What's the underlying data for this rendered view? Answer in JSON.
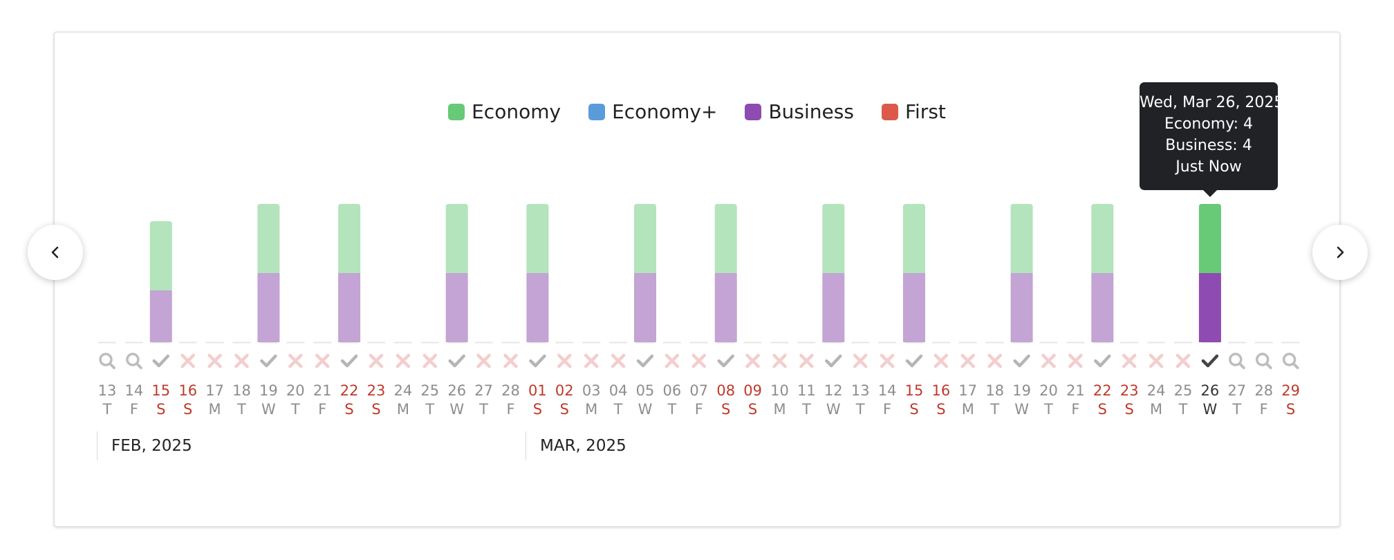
{
  "legend": [
    {
      "label": "Economy",
      "color": "#68c976"
    },
    {
      "label": "Economy+",
      "color": "#5b9bd9"
    },
    {
      "label": "Business",
      "color": "#8e4bb1"
    },
    {
      "label": "First",
      "color": "#dc5a4b"
    }
  ],
  "nav": {
    "prev_icon": "chevron-left-icon",
    "next_icon": "chevron-right-icon"
  },
  "tooltip": {
    "date": "Wed, Mar 26, 2025",
    "economy": "Economy: 4",
    "business": "Business: 4",
    "updated": "Just Now"
  },
  "months": [
    "FEB, 2025",
    "MAR, 2025"
  ],
  "colors": {
    "economy": "#68c976",
    "economy_faded": "#b3e4bc",
    "business": "#8e4bb1",
    "business_faded": "#c3a4d4",
    "weekend": "#c0392b",
    "weekday": "#8d8d8d",
    "selected": "#333333"
  },
  "chart_data": {
    "type": "bar",
    "stacked": true,
    "selected_day": "26",
    "days": [
      {
        "day": "13",
        "dow": "T",
        "status": "search",
        "economy": 0,
        "business": 0
      },
      {
        "day": "14",
        "dow": "F",
        "status": "search",
        "economy": 0,
        "business": 0
      },
      {
        "day": "15",
        "dow": "S",
        "status": "available",
        "economy": 4,
        "business": 3
      },
      {
        "day": "16",
        "dow": "S",
        "status": "unavailable",
        "economy": 0,
        "business": 0
      },
      {
        "day": "17",
        "dow": "M",
        "status": "unavailable",
        "economy": 0,
        "business": 0
      },
      {
        "day": "18",
        "dow": "T",
        "status": "unavailable",
        "economy": 0,
        "business": 0
      },
      {
        "day": "19",
        "dow": "W",
        "status": "available",
        "economy": 4,
        "business": 4
      },
      {
        "day": "20",
        "dow": "T",
        "status": "unavailable",
        "economy": 0,
        "business": 0
      },
      {
        "day": "21",
        "dow": "F",
        "status": "unavailable",
        "economy": 0,
        "business": 0
      },
      {
        "day": "22",
        "dow": "S",
        "status": "available",
        "economy": 4,
        "business": 4
      },
      {
        "day": "23",
        "dow": "S",
        "status": "unavailable",
        "economy": 0,
        "business": 0
      },
      {
        "day": "24",
        "dow": "M",
        "status": "unavailable",
        "economy": 0,
        "business": 0
      },
      {
        "day": "25",
        "dow": "T",
        "status": "unavailable",
        "economy": 0,
        "business": 0
      },
      {
        "day": "26",
        "dow": "W",
        "status": "available",
        "economy": 4,
        "business": 4
      },
      {
        "day": "27",
        "dow": "T",
        "status": "unavailable",
        "economy": 0,
        "business": 0
      },
      {
        "day": "28",
        "dow": "F",
        "status": "unavailable",
        "economy": 0,
        "business": 0
      },
      {
        "day": "01",
        "dow": "S",
        "status": "available",
        "economy": 4,
        "business": 4
      },
      {
        "day": "02",
        "dow": "S",
        "status": "unavailable",
        "economy": 0,
        "business": 0
      },
      {
        "day": "03",
        "dow": "M",
        "status": "unavailable",
        "economy": 0,
        "business": 0
      },
      {
        "day": "04",
        "dow": "T",
        "status": "unavailable",
        "economy": 0,
        "business": 0
      },
      {
        "day": "05",
        "dow": "W",
        "status": "available",
        "economy": 4,
        "business": 4
      },
      {
        "day": "06",
        "dow": "T",
        "status": "unavailable",
        "economy": 0,
        "business": 0
      },
      {
        "day": "07",
        "dow": "F",
        "status": "unavailable",
        "economy": 0,
        "business": 0
      },
      {
        "day": "08",
        "dow": "S",
        "status": "available",
        "economy": 4,
        "business": 4
      },
      {
        "day": "09",
        "dow": "S",
        "status": "unavailable",
        "economy": 0,
        "business": 0
      },
      {
        "day": "10",
        "dow": "M",
        "status": "unavailable",
        "economy": 0,
        "business": 0
      },
      {
        "day": "11",
        "dow": "T",
        "status": "unavailable",
        "economy": 0,
        "business": 0
      },
      {
        "day": "12",
        "dow": "W",
        "status": "available",
        "economy": 4,
        "business": 4
      },
      {
        "day": "13",
        "dow": "T",
        "status": "unavailable",
        "economy": 0,
        "business": 0
      },
      {
        "day": "14",
        "dow": "F",
        "status": "unavailable",
        "economy": 0,
        "business": 0
      },
      {
        "day": "15",
        "dow": "S",
        "status": "available",
        "economy": 4,
        "business": 4
      },
      {
        "day": "16",
        "dow": "S",
        "status": "unavailable",
        "economy": 0,
        "business": 0
      },
      {
        "day": "17",
        "dow": "M",
        "status": "unavailable",
        "economy": 0,
        "business": 0
      },
      {
        "day": "18",
        "dow": "T",
        "status": "unavailable",
        "economy": 0,
        "business": 0
      },
      {
        "day": "19",
        "dow": "W",
        "status": "available",
        "economy": 4,
        "business": 4
      },
      {
        "day": "20",
        "dow": "T",
        "status": "unavailable",
        "economy": 0,
        "business": 0
      },
      {
        "day": "21",
        "dow": "F",
        "status": "unavailable",
        "economy": 0,
        "business": 0
      },
      {
        "day": "22",
        "dow": "S",
        "status": "available",
        "economy": 4,
        "business": 4
      },
      {
        "day": "23",
        "dow": "S",
        "status": "unavailable",
        "economy": 0,
        "business": 0
      },
      {
        "day": "24",
        "dow": "M",
        "status": "unavailable",
        "economy": 0,
        "business": 0
      },
      {
        "day": "25",
        "dow": "T",
        "status": "unavailable",
        "economy": 0,
        "business": 0
      },
      {
        "day": "26",
        "dow": "W",
        "status": "available",
        "economy": 4,
        "business": 4,
        "selected": true
      },
      {
        "day": "27",
        "dow": "T",
        "status": "search",
        "economy": 0,
        "business": 0
      },
      {
        "day": "28",
        "dow": "F",
        "status": "search",
        "economy": 0,
        "business": 0
      },
      {
        "day": "29",
        "dow": "S",
        "status": "search",
        "economy": 0,
        "business": 0
      }
    ],
    "ylim": [
      0,
      8
    ]
  }
}
